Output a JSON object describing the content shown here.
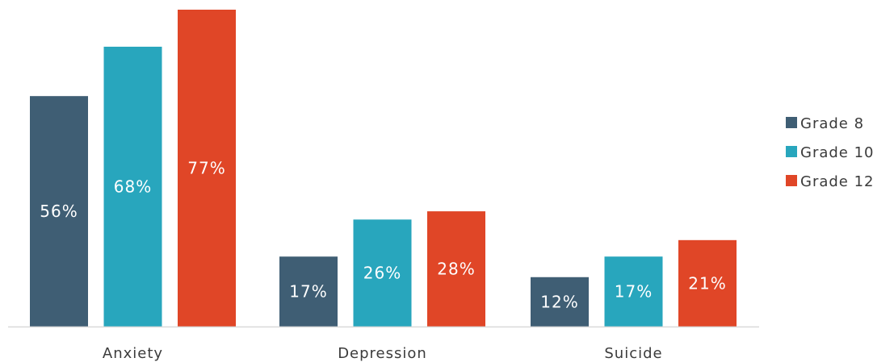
{
  "chart_data": {
    "type": "bar",
    "categories": [
      "Anxiety",
      "Depression",
      "Suicide"
    ],
    "series": [
      {
        "name": "Grade 8",
        "color": "#3f5e74",
        "values": [
          56,
          17,
          12
        ]
      },
      {
        "name": "Grade 10",
        "color": "#28a6bd",
        "values": [
          68,
          26,
          17
        ]
      },
      {
        "name": "Grade 12",
        "color": "#e04627",
        "values": [
          77,
          28,
          21
        ]
      }
    ],
    "value_suffix": "%",
    "ylim": [
      0,
      80
    ],
    "grid": false,
    "legend_position": "right",
    "title": "",
    "xlabel": "",
    "ylabel": ""
  }
}
